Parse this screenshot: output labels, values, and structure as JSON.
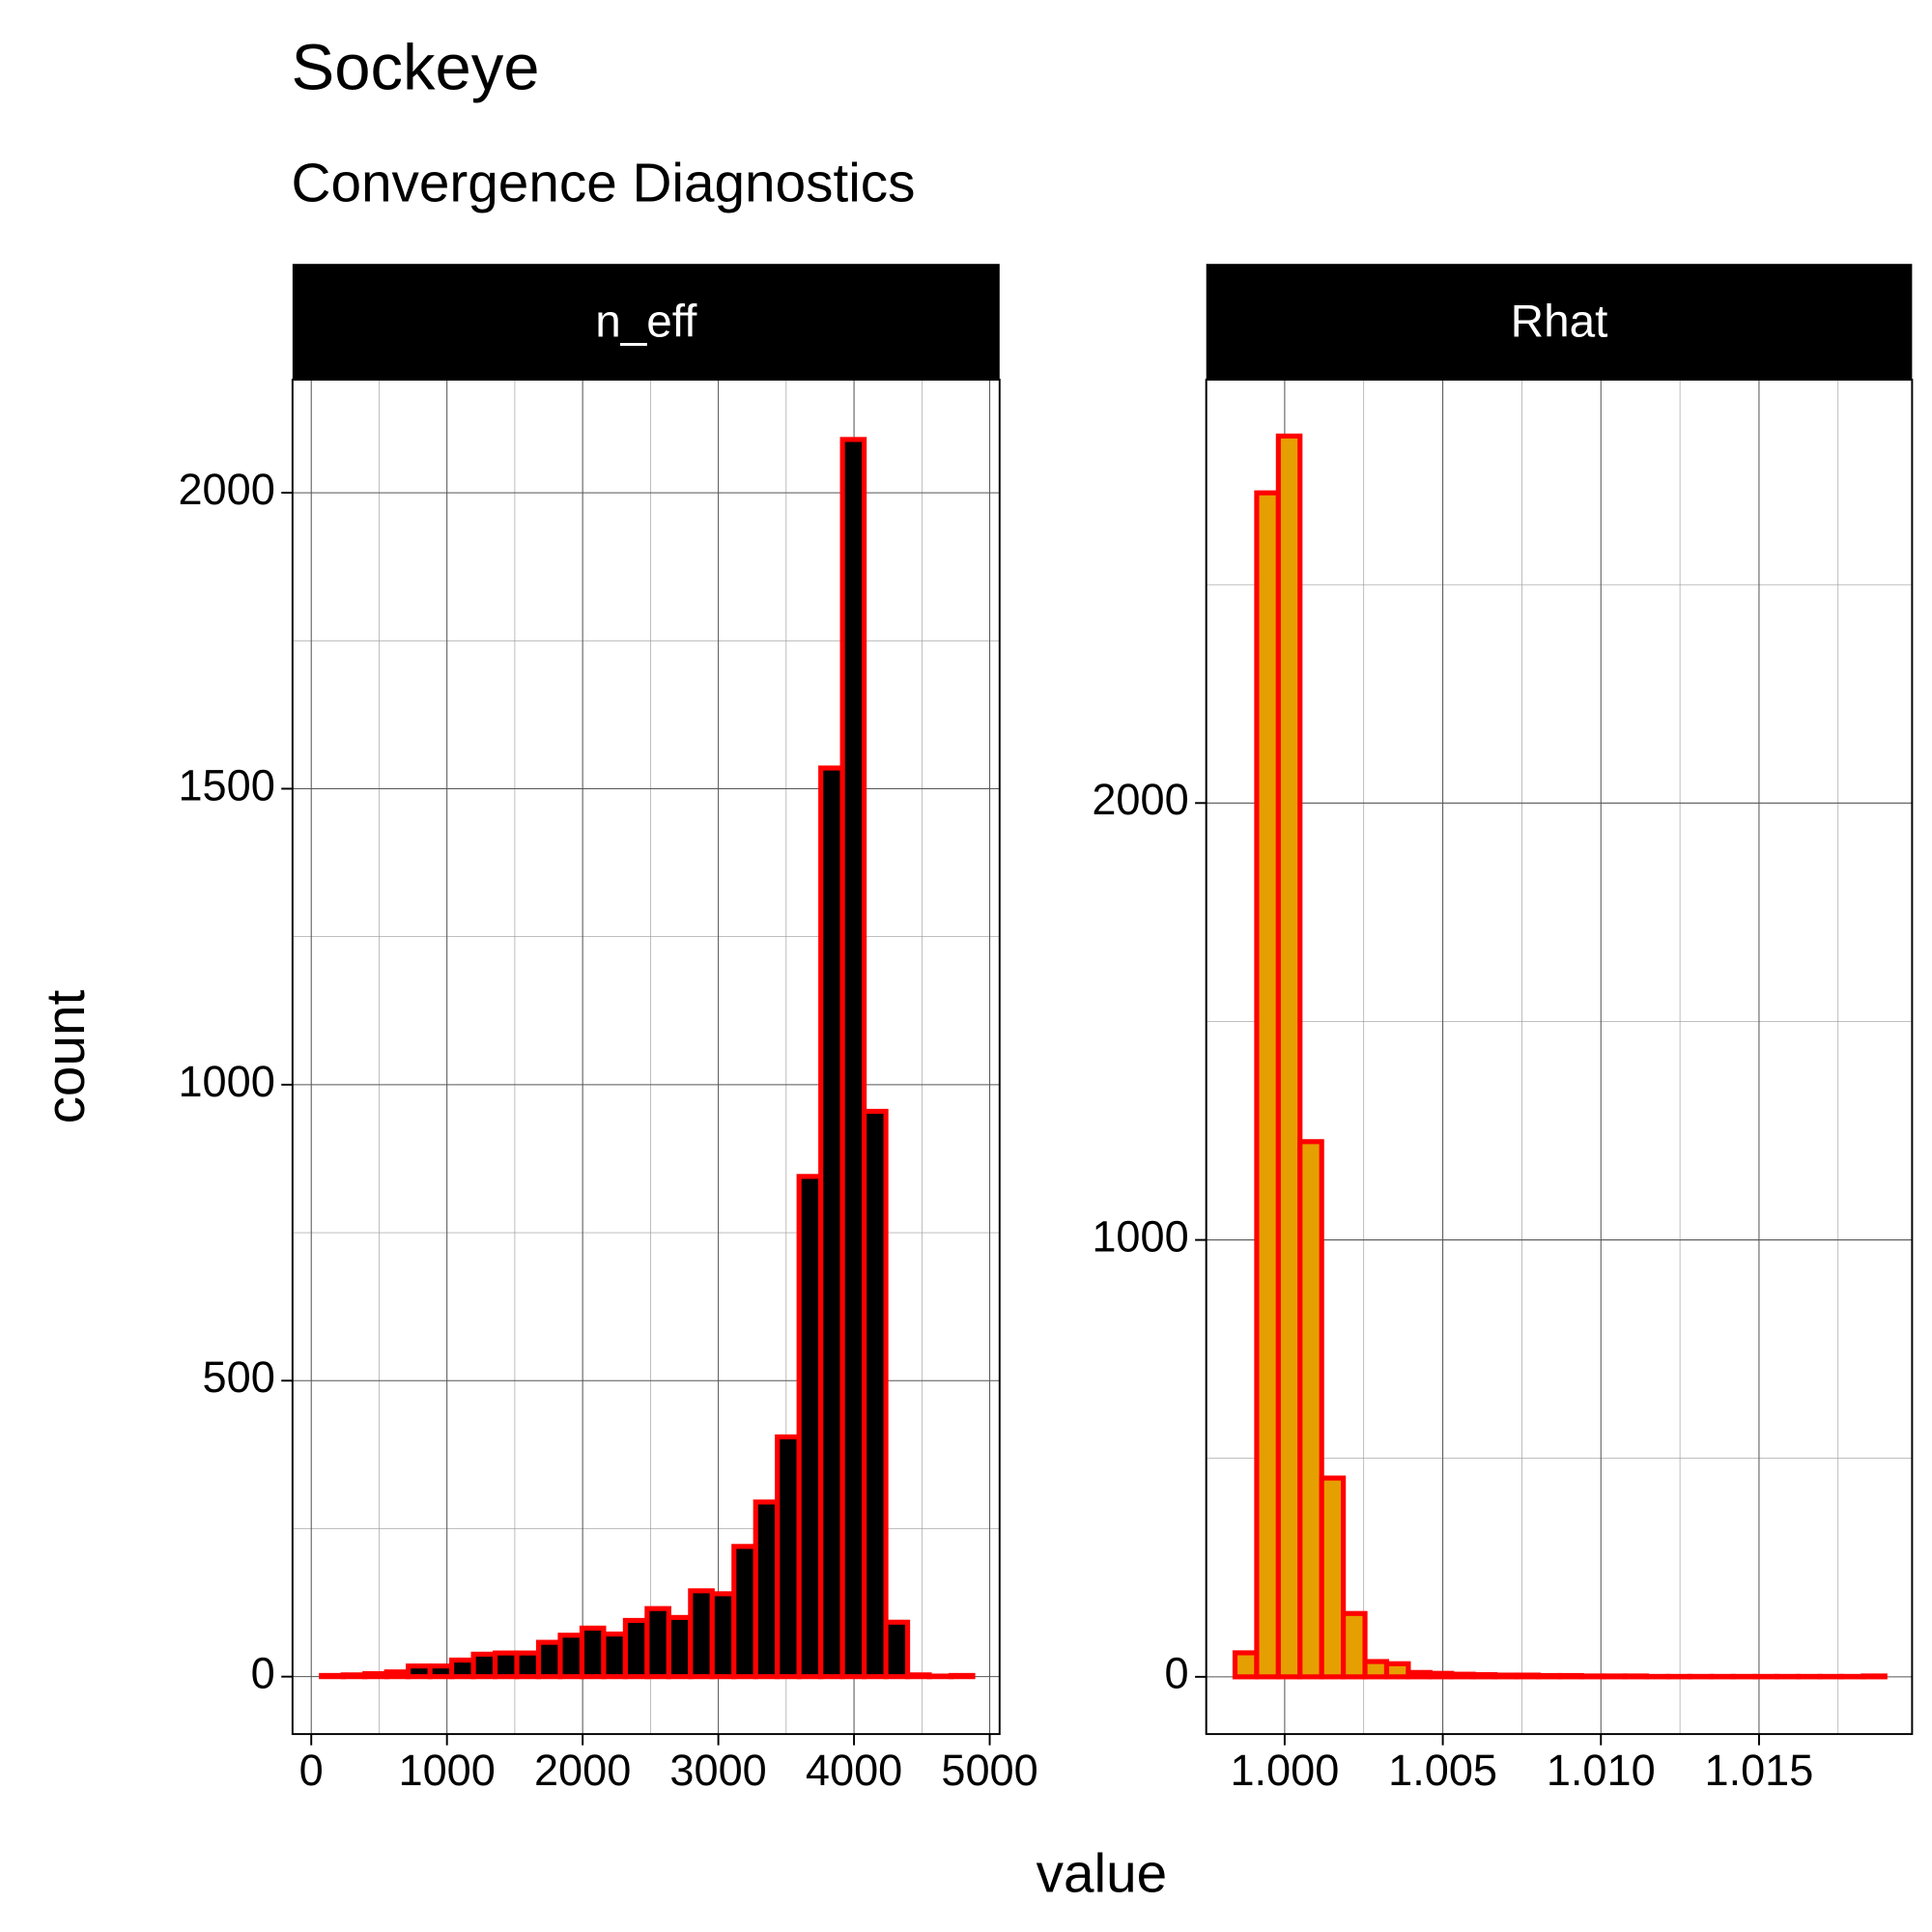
{
  "title": "Sockeye",
  "subtitle": "Convergence Diagnostics",
  "xlabel": "value",
  "ylabel": "count",
  "chart_data": [
    {
      "type": "histogram",
      "title": "n_eff",
      "fill": "#000000",
      "edgecolor": "#ff0000",
      "bins": [
        75,
        235,
        395,
        555,
        715,
        875,
        1035,
        1195,
        1355,
        1515,
        1675,
        1835,
        1995,
        2155,
        2315,
        2475,
        2635,
        2795,
        2955,
        3115,
        3275,
        3435,
        3595,
        3755,
        3915,
        4075,
        4235,
        4395,
        4555,
        4715,
        4875
      ],
      "values": [
        2,
        3,
        5,
        8,
        18,
        18,
        28,
        38,
        40,
        40,
        58,
        70,
        82,
        72,
        95,
        115,
        100,
        145,
        140,
        220,
        295,
        405,
        845,
        1535,
        2090,
        955,
        92,
        3,
        1,
        2
      ],
      "xlim": [
        -138,
        5073
      ],
      "ylim": [
        -97,
        2191
      ],
      "xticks": [
        0,
        1000,
        2000,
        3000,
        4000,
        5000
      ],
      "yticks": [
        0,
        500,
        1000,
        1500,
        2000
      ],
      "minor_xticks": [
        500,
        1500,
        2500,
        3500,
        4500
      ],
      "minor_yticks": [
        250,
        750,
        1250,
        1750
      ],
      "grid": true
    },
    {
      "type": "histogram",
      "title": "Rhat",
      "fill": "#e69f00",
      "edgecolor": "#ff0000",
      "bins": [
        0.99843,
        0.999115,
        0.9998,
        1.000485,
        1.00117,
        1.001855,
        1.00254,
        1.003225,
        1.00391,
        1.004595,
        1.00528,
        1.005965,
        1.00665,
        1.007335,
        1.00802,
        1.008705,
        1.00939,
        1.010075,
        1.01076,
        1.011445,
        1.01213,
        1.012815,
        1.0135,
        1.014185,
        1.01487,
        1.015555,
        1.01624,
        1.016925,
        1.01761,
        1.018295,
        1.01898
      ],
      "values": [
        55,
        2710,
        2840,
        1225,
        455,
        145,
        35,
        30,
        10,
        8,
        6,
        5,
        4,
        4,
        3,
        3,
        2,
        2,
        2,
        1,
        1,
        1,
        1,
        1,
        1,
        1,
        1,
        1,
        1,
        2
      ],
      "xlim": [
        0.99752,
        1.01984
      ],
      "ylim": [
        -131,
        2969
      ],
      "xticks": [
        {
          "value": 1,
          "label": "1.000"
        },
        {
          "value": 1.005,
          "label": "1.005"
        },
        {
          "value": 1.01,
          "label": "1.010"
        },
        {
          "value": 1.015,
          "label": "1.015"
        }
      ],
      "yticks": [
        0,
        1000,
        2000
      ],
      "minor_xticks": [
        0.9975,
        1.0025,
        1.0075,
        1.0125,
        1.0175
      ],
      "minor_yticks": [
        500,
        1500,
        2500
      ],
      "grid": true
    }
  ]
}
